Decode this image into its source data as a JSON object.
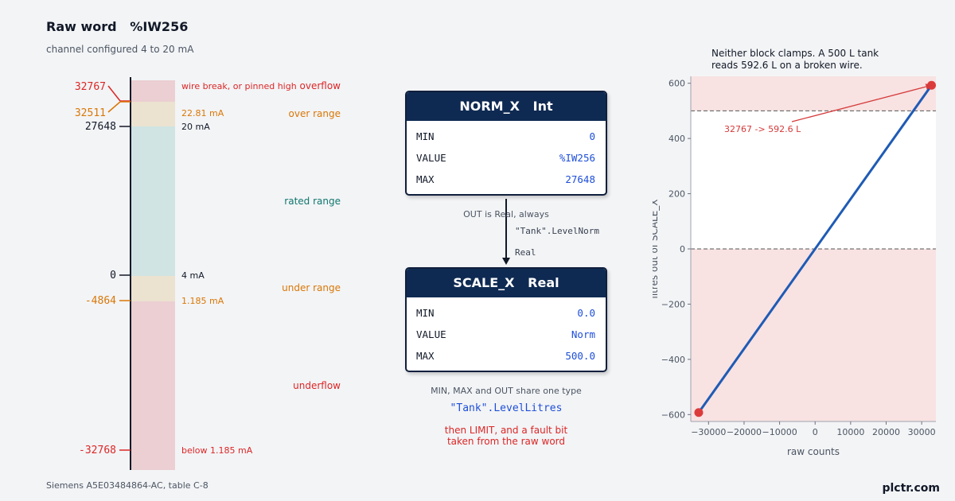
{
  "header": {
    "title": "Raw word   %IW256",
    "subtitle": "channel configured 4 to 20 mA"
  },
  "footer": {
    "source": "Siemens A5E03484864-AC, table C-8",
    "brand": "plctr.com"
  },
  "scale_bar": {
    "ticks": [
      {
        "value": "32767",
        "color": "#dc2626"
      },
      {
        "value": "32511",
        "color": "#d97706"
      },
      {
        "value": "27648",
        "color": "#111827"
      },
      {
        "value": "0",
        "color": "#111827"
      },
      {
        "value": "-4864",
        "color": "#d97706"
      },
      {
        "value": "-32768",
        "color": "#dc2626"
      }
    ],
    "notes": [
      {
        "text": "wire break, or pinned high",
        "color": "#dc2626"
      },
      {
        "text": "22.81 mA",
        "color": "#d97706"
      },
      {
        "text": "20 mA",
        "color": "#111827"
      },
      {
        "text": "4 mA",
        "color": "#111827"
      },
      {
        "text": "1.185 mA",
        "color": "#d97706"
      },
      {
        "text": "below 1.185 mA",
        "color": "#dc2626"
      }
    ],
    "zones": [
      {
        "label": "overflow",
        "color": "#dc2626",
        "fill": "#ebcfd2"
      },
      {
        "label": "over range",
        "color": "#d97706",
        "fill": "#ebe2d0"
      },
      {
        "label": "rated range",
        "color": "#0f766e",
        "fill": "#cfe4e3"
      },
      {
        "label": "under range",
        "color": "#d97706",
        "fill": "#ebe2d0"
      },
      {
        "label": "underflow",
        "color": "#dc2626",
        "fill": "#ebcfd2"
      }
    ]
  },
  "norm_block": {
    "title": "NORM_X   Int",
    "rows": [
      {
        "name": "MIN",
        "value": "0"
      },
      {
        "name": "VALUE",
        "value": "%IW256"
      },
      {
        "name": "MAX",
        "value": "27648"
      }
    ]
  },
  "scale_block": {
    "title": "SCALE_X   Real",
    "rows": [
      {
        "name": "MIN",
        "value": "0.0"
      },
      {
        "name": "VALUE",
        "value": "Norm"
      },
      {
        "name": "MAX",
        "value": "500.0"
      }
    ]
  },
  "link": {
    "out_note": "OUT is Real, always",
    "tag": "\"Tank\".LevelNorm",
    "type": "Real"
  },
  "scale_notes": {
    "share_type": "MIN, MAX and OUT share one type",
    "out_tag": "\"Tank\".LevelLitres",
    "limit_line1": "then LIMIT, and a fault bit",
    "limit_line2": "taken from the raw word"
  },
  "chart_data": {
    "type": "line",
    "title": "Neither block clamps. A 500 L tank reads 592.6 L on a broken wire.",
    "title_lines": [
      "Neither block clamps. A 500 L tank",
      "reads 592.6 L on a broken wire."
    ],
    "xlabel": "raw counts",
    "ylabel": "litres out of SCALE_X",
    "xlim": [
      -35000,
      34000
    ],
    "ylim": [
      -625,
      625
    ],
    "xticks": [
      -30000,
      -20000,
      -10000,
      0,
      10000,
      20000,
      30000
    ],
    "xtick_labels": [
      "−30000",
      "−20000",
      "−10000",
      "0",
      "10000",
      "20000",
      "30000"
    ],
    "yticks": [
      -600,
      -400,
      -200,
      0,
      200,
      400,
      600
    ],
    "ytick_labels": [
      "−600",
      "−400",
      "−200",
      "0",
      "200",
      "400",
      "600"
    ],
    "series": [
      {
        "x": [
          -32768,
          32767
        ],
        "y": [
          -592.6,
          592.6
        ],
        "color": "#1f5bb5"
      }
    ],
    "endpoints": [
      {
        "x": -32768,
        "y": -592.6
      },
      {
        "x": 32767,
        "y": 592.6
      }
    ],
    "hlines": [
      0,
      500
    ],
    "shaded_ranges": [
      [
        500,
        625
      ],
      [
        -625,
        0
      ]
    ],
    "annotation": {
      "text": "32767 -> 592.6 L",
      "target_x": 32767,
      "target_y": 592.6
    },
    "colors": {
      "line": "#1f5bb5",
      "points": "#dc3b3b",
      "shade": "#f8e2e2",
      "annotation": "#d63a3a",
      "hline": "#555555"
    },
    "grid": false
  }
}
